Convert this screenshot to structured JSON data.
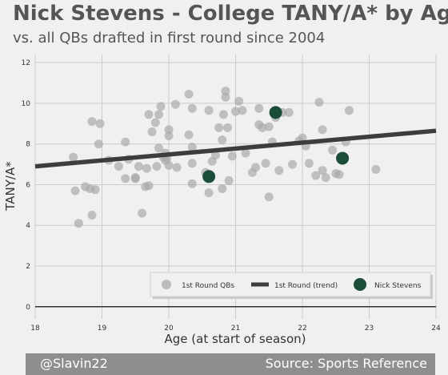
{
  "header": {
    "title": "Nick Stevens - College TANY/A* by Age",
    "subtitle": "vs. all QBs drafted in first round since 2004"
  },
  "footer": {
    "left": "@Slavin22",
    "right": "Source: Sports Reference"
  },
  "chart_data": {
    "type": "scatter",
    "xlabel": "Age (at start of season)",
    "ylabel": "TANY/A*",
    "xlim": [
      18,
      24
    ],
    "ylim": [
      -0.6,
      12.4
    ],
    "xticks": [
      18,
      19,
      20,
      21,
      22,
      23,
      24
    ],
    "yticks": [
      0,
      2,
      4,
      6,
      8,
      10,
      12
    ],
    "grid": true,
    "legend_placement": "lower-right",
    "colors": {
      "background": "#f0f0f0",
      "grid": "#cbcbcb",
      "points": "#aaaaaa",
      "trend": "#3d3d3d",
      "highlight": "#1b4d38",
      "zero_line": "#333333"
    },
    "series": [
      {
        "name": "1st Round QBs",
        "kind": "scatter",
        "points": [
          [
            18.57,
            7.35
          ],
          [
            18.6,
            5.7
          ],
          [
            18.65,
            4.1
          ],
          [
            18.75,
            5.9
          ],
          [
            18.82,
            5.8
          ],
          [
            18.85,
            4.5
          ],
          [
            18.85,
            9.1
          ],
          [
            18.9,
            5.75
          ],
          [
            18.95,
            8.0
          ],
          [
            18.97,
            9.0
          ],
          [
            19.1,
            7.2
          ],
          [
            19.25,
            6.9
          ],
          [
            19.35,
            8.1
          ],
          [
            19.35,
            6.3
          ],
          [
            19.4,
            7.25
          ],
          [
            19.5,
            6.3
          ],
          [
            19.5,
            6.35
          ],
          [
            19.55,
            6.9
          ],
          [
            19.6,
            4.6
          ],
          [
            19.65,
            5.9
          ],
          [
            19.67,
            6.8
          ],
          [
            19.7,
            5.95
          ],
          [
            19.7,
            9.45
          ],
          [
            19.75,
            8.6
          ],
          [
            19.8,
            9.05
          ],
          [
            19.82,
            6.9
          ],
          [
            19.85,
            7.8
          ],
          [
            19.85,
            9.45
          ],
          [
            19.88,
            9.85
          ],
          [
            19.92,
            7.35
          ],
          [
            19.95,
            7.55
          ],
          [
            19.95,
            7.2
          ],
          [
            19.97,
            7.3
          ],
          [
            20.0,
            8.4
          ],
          [
            20.0,
            8.7
          ],
          [
            20.0,
            6.95
          ],
          [
            20.1,
            9.95
          ],
          [
            20.12,
            6.85
          ],
          [
            20.3,
            8.45
          ],
          [
            20.3,
            10.45
          ],
          [
            20.35,
            7.85
          ],
          [
            20.35,
            7.05
          ],
          [
            20.35,
            6.05
          ],
          [
            20.35,
            9.75
          ],
          [
            20.55,
            6.6
          ],
          [
            20.6,
            5.6
          ],
          [
            20.6,
            9.65
          ],
          [
            20.65,
            7.15
          ],
          [
            20.7,
            7.45
          ],
          [
            20.75,
            8.8
          ],
          [
            20.8,
            5.8
          ],
          [
            20.8,
            8.2
          ],
          [
            20.82,
            9.45
          ],
          [
            20.85,
            10.6
          ],
          [
            20.85,
            10.3
          ],
          [
            20.88,
            8.8
          ],
          [
            20.9,
            6.2
          ],
          [
            20.95,
            7.4
          ],
          [
            21.0,
            9.6
          ],
          [
            21.05,
            10.1
          ],
          [
            21.1,
            9.65
          ],
          [
            21.15,
            7.55
          ],
          [
            21.25,
            6.6
          ],
          [
            21.3,
            6.85
          ],
          [
            21.35,
            9.75
          ],
          [
            21.35,
            8.95
          ],
          [
            21.4,
            8.8
          ],
          [
            21.45,
            7.05
          ],
          [
            21.5,
            5.4
          ],
          [
            21.5,
            8.85
          ],
          [
            21.55,
            8.1
          ],
          [
            21.6,
            9.3
          ],
          [
            21.65,
            6.7
          ],
          [
            21.7,
            9.55
          ],
          [
            21.8,
            9.55
          ],
          [
            21.85,
            7.0
          ],
          [
            21.95,
            8.15
          ],
          [
            22.0,
            8.3
          ],
          [
            22.05,
            7.9
          ],
          [
            22.1,
            7.05
          ],
          [
            22.2,
            6.45
          ],
          [
            22.25,
            10.05
          ],
          [
            22.3,
            8.7
          ],
          [
            22.3,
            6.7
          ],
          [
            22.35,
            6.35
          ],
          [
            22.45,
            7.7
          ],
          [
            22.5,
            6.55
          ],
          [
            22.55,
            6.5
          ],
          [
            22.65,
            8.1
          ],
          [
            22.7,
            9.65
          ],
          [
            23.1,
            6.75
          ]
        ]
      },
      {
        "name": "1st Round (trend)",
        "kind": "line",
        "points": [
          [
            18.0,
            6.9
          ],
          [
            24.0,
            8.65
          ]
        ]
      },
      {
        "name": "Nick Stevens",
        "kind": "scatter",
        "points": [
          [
            20.6,
            6.4
          ],
          [
            21.6,
            9.55
          ],
          [
            22.6,
            7.3
          ]
        ]
      }
    ]
  }
}
